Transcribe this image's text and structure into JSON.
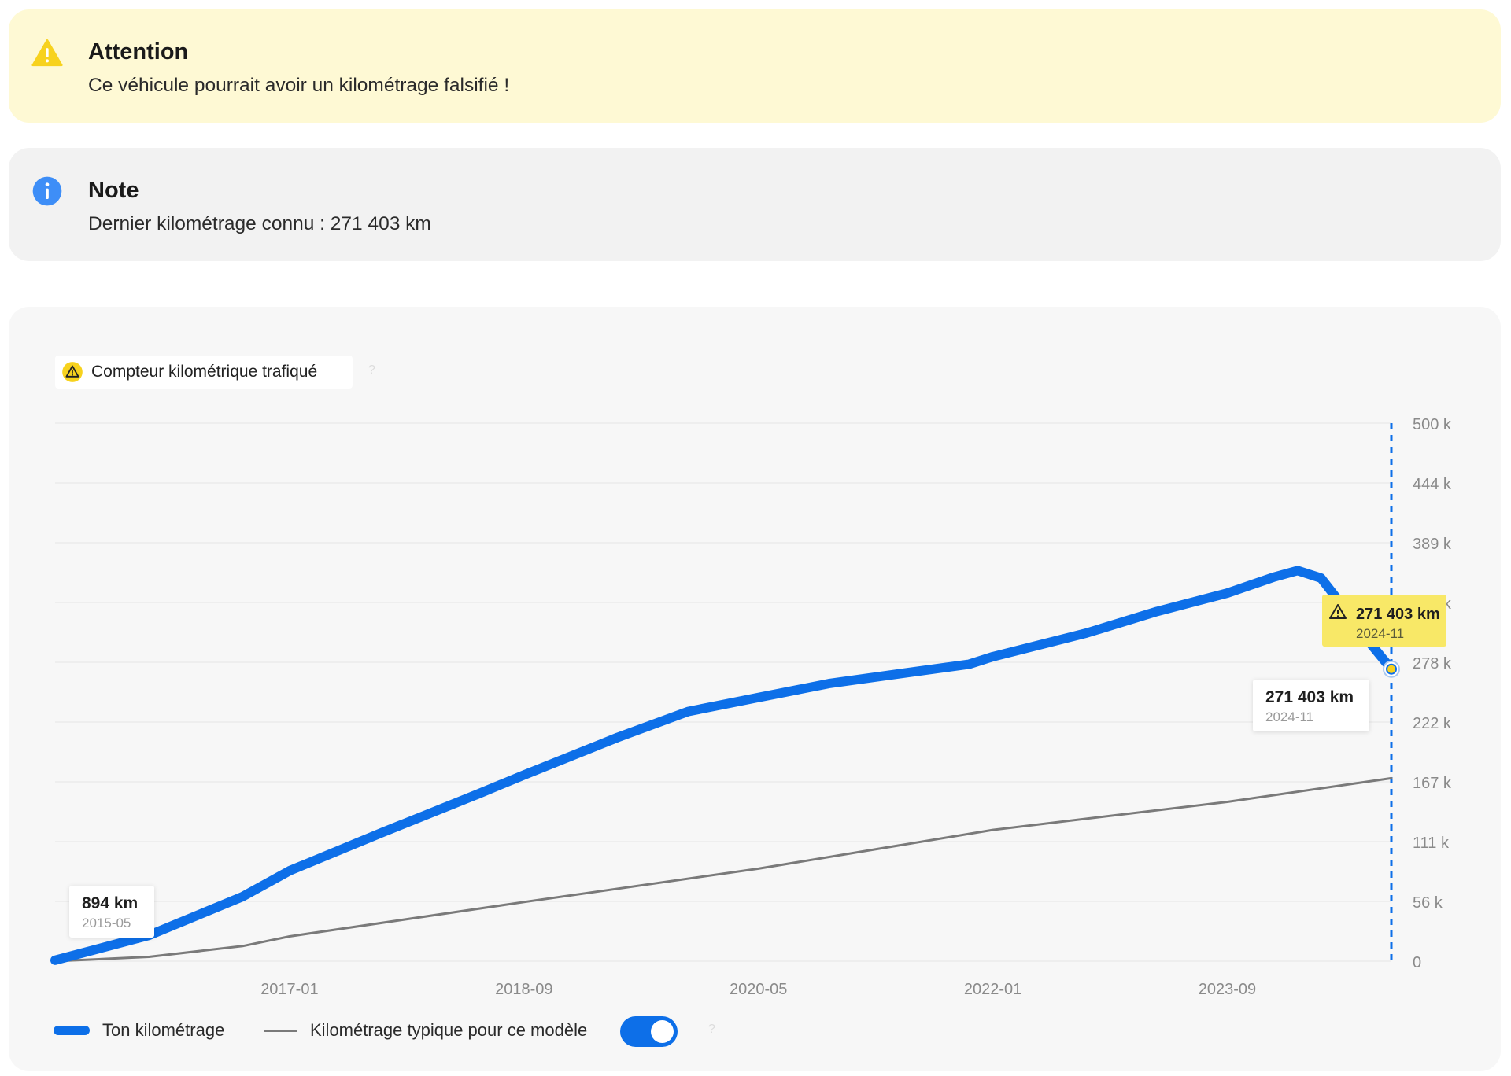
{
  "warning": {
    "icon": "warning-triangle-icon",
    "title": "Attention",
    "message": "Ce véhicule pourrait avoir un kilométrage falsifié !"
  },
  "note": {
    "icon": "info-icon",
    "title": "Note",
    "message": "Dernier kilométrage connu : 271 403 km"
  },
  "badge": {
    "icon": "warning-triangle-icon",
    "label": "Compteur kilométrique trafiqué",
    "help": "?"
  },
  "legend": {
    "mine_label": "Ton kilométrage",
    "typical_label": "Kilométrage typique pour ce modèle",
    "toggle_on": true,
    "toggle_help": "?"
  },
  "colors": {
    "mine": "#0d6fe8",
    "typical": "#7a7a7a",
    "warning_bg": "#fef9d4",
    "warning_icon": "#f7d21e",
    "info_icon": "#3e8ef7",
    "callout_warning": "#f8e867"
  },
  "chart_data": {
    "type": "line",
    "x_tick_labels": [
      "2017-01",
      "2018-09",
      "2020-05",
      "2022-01",
      "2023-09"
    ],
    "y_tick_labels": [
      "0",
      "56 k",
      "111 k",
      "167 k",
      "222 k",
      "278 k",
      "333 k",
      "389 k",
      "444 k",
      "500 k"
    ],
    "y_axis_position": "right",
    "ylim": [
      0,
      500000
    ],
    "grid": true,
    "series": [
      {
        "name": "Ton kilométrage",
        "points": [
          [
            "2015-05",
            894
          ],
          [
            "2016-01",
            24000
          ],
          [
            "2016-09",
            60000
          ],
          [
            "2017-01",
            84000
          ],
          [
            "2017-09",
            120000
          ],
          [
            "2018-05",
            155000
          ],
          [
            "2018-09",
            173000
          ],
          [
            "2019-05",
            208000
          ],
          [
            "2019-11",
            232000
          ],
          [
            "2020-05",
            245000
          ],
          [
            "2020-11",
            258000
          ],
          [
            "2021-05",
            267000
          ],
          [
            "2021-11",
            276000
          ],
          [
            "2022-01",
            283000
          ],
          [
            "2022-09",
            305000
          ],
          [
            "2023-03",
            325000
          ],
          [
            "2023-09",
            342000
          ],
          [
            "2024-01",
            357000
          ],
          [
            "2024-03",
            363000
          ],
          [
            "2024-05",
            356000
          ],
          [
            "2024-07",
            328000
          ],
          [
            "2024-09",
            298000
          ],
          [
            "2024-11",
            271403
          ]
        ]
      },
      {
        "name": "Kilométrage typique pour ce modèle",
        "points": [
          [
            "2015-05",
            0
          ],
          [
            "2016-01",
            4000
          ],
          [
            "2016-09",
            14000
          ],
          [
            "2017-01",
            23000
          ],
          [
            "2018-09",
            55000
          ],
          [
            "2020-05",
            86000
          ],
          [
            "2022-01",
            122000
          ],
          [
            "2023-09",
            148000
          ],
          [
            "2024-11",
            170000
          ]
        ]
      }
    ],
    "annotations": [
      {
        "label": "894 km",
        "date": "2015-05",
        "style": "white"
      },
      {
        "label": "271 403 km",
        "date": "2024-11",
        "style": "white"
      },
      {
        "label": "271 403 km",
        "date": "2024-11",
        "style": "warning"
      }
    ],
    "marker": {
      "date": "2024-11",
      "style": "dashed-vertical-line"
    }
  }
}
